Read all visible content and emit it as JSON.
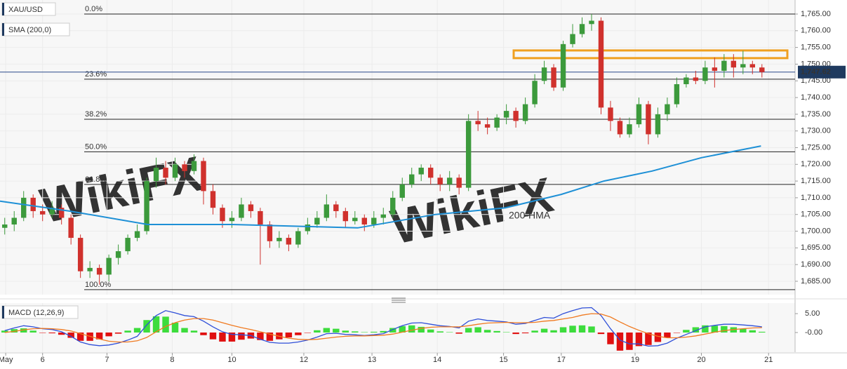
{
  "chart_data": [
    {
      "type": "candlestick",
      "title": "XAU/USD",
      "subtitle": "SMA (200,0)",
      "watermark": "WikiFX",
      "open": [
        1701,
        1702,
        1704,
        1710,
        1706,
        1705,
        1707,
        1704,
        1698,
        1688,
        1689,
        1687,
        1692,
        1694,
        1698,
        1700,
        1715,
        1719,
        1716,
        1720,
        1718,
        1721,
        1712,
        1707,
        1703,
        1704,
        1708,
        1706,
        1702,
        1697,
        1698,
        1696,
        1700,
        1702,
        1704,
        1708,
        1706,
        1703,
        1704,
        1702,
        1704,
        1705,
        1710,
        1714,
        1717,
        1719,
        1716,
        1714,
        1716,
        1713,
        1733,
        1732,
        1731,
        1734,
        1736,
        1733,
        1738,
        1745,
        1749,
        1743,
        1756,
        1759,
        1762,
        1763,
        1737,
        1733,
        1729,
        1732,
        1738,
        1729,
        1735,
        1738,
        1744,
        1746,
        1745,
        1749,
        1748,
        1751,
        1749,
        1750,
        1749
      ],
      "high": [
        1704,
        1706,
        1712,
        1711,
        1708,
        1709,
        1708,
        1705,
        1699,
        1691,
        1690,
        1693,
        1696,
        1699,
        1702,
        1716,
        1722,
        1721,
        1722,
        1721,
        1723,
        1722,
        1714,
        1708,
        1706,
        1710,
        1709,
        1707,
        1703,
        1700,
        1699,
        1701,
        1704,
        1706,
        1711,
        1709,
        1707,
        1706,
        1705,
        1706,
        1707,
        1712,
        1716,
        1719,
        1720,
        1720,
        1717,
        1718,
        1717,
        1735,
        1736,
        1734,
        1735,
        1738,
        1737,
        1740,
        1747,
        1751,
        1750,
        1757,
        1762,
        1764,
        1765,
        1764,
        1739,
        1734,
        1734,
        1740,
        1739,
        1737,
        1740,
        1746,
        1747,
        1748,
        1751,
        1752,
        1753,
        1753,
        1754,
        1751,
        1750
      ],
      "low": [
        1699,
        1700,
        1703,
        1704,
        1703,
        1704,
        1702,
        1696,
        1686,
        1686,
        1684,
        1685,
        1690,
        1693,
        1697,
        1699,
        1713,
        1714,
        1715,
        1716,
        1717,
        1708,
        1705,
        1701,
        1701,
        1703,
        1704,
        1690,
        1695,
        1695,
        1694,
        1695,
        1699,
        1701,
        1703,
        1704,
        1701,
        1702,
        1700,
        1701,
        1702,
        1704,
        1709,
        1713,
        1715,
        1714,
        1712,
        1712,
        1711,
        1712,
        1730,
        1729,
        1730,
        1732,
        1731,
        1732,
        1737,
        1744,
        1742,
        1742,
        1755,
        1758,
        1760,
        1735,
        1730,
        1728,
        1728,
        1731,
        1726,
        1728,
        1733,
        1737,
        1743,
        1744,
        1744,
        1743,
        1746,
        1746,
        1747,
        1747,
        1746
      ],
      "close": [
        1702,
        1704,
        1710,
        1706,
        1705,
        1707,
        1704,
        1698,
        1688,
        1689,
        1687,
        1692,
        1694,
        1698,
        1700,
        1715,
        1719,
        1716,
        1720,
        1718,
        1721,
        1712,
        1707,
        1703,
        1704,
        1708,
        1706,
        1702,
        1697,
        1698,
        1696,
        1700,
        1702,
        1704,
        1708,
        1706,
        1703,
        1704,
        1702,
        1704,
        1705,
        1710,
        1714,
        1717,
        1719,
        1716,
        1714,
        1716,
        1713,
        1733,
        1732,
        1731,
        1734,
        1736,
        1733,
        1738,
        1745,
        1749,
        1743,
        1756,
        1759,
        1762,
        1763,
        1737,
        1733,
        1729,
        1732,
        1738,
        1729,
        1735,
        1738,
        1744,
        1746,
        1745,
        1749,
        1748,
        1751,
        1749,
        1750,
        1749,
        1747.62
      ],
      "up_color": "#3c9a3c",
      "down_color": "#d0312d",
      "series": [
        {
          "name": "200-HMA",
          "color": "#1e90d6",
          "x": [
            -0.5,
            6.9,
            15.1,
            24,
            37.3,
            45.5,
            52.9,
            58.8,
            63.3,
            68.4,
            73.6,
            79.9
          ],
          "values": [
            1709,
            1706,
            1702,
            1702,
            1701,
            1705,
            1707,
            1711,
            1715,
            1718,
            1722,
            1725.5
          ]
        }
      ],
      "fib_levels": [
        {
          "value": 1765,
          "label": "0.0%"
        },
        {
          "value": 1745.5,
          "label": "23.6%"
        },
        {
          "value": 1733.5,
          "label": "38.2%"
        },
        {
          "value": 1723.75,
          "label": "50.0%"
        },
        {
          "value": 1714,
          "label": "61.8%"
        },
        {
          "value": 1682.5,
          "label": "100.0%"
        }
      ],
      "resistance_zone": [
        1751.8,
        1754.1
      ],
      "zone_color": "#f0a020",
      "last_price": {
        "value": 1747.62,
        "label": "1,747.62"
      },
      "xlim": [
        -0.5,
        83.5
      ],
      "xticks": [
        {
          "value": 0.1,
          "label": "May"
        },
        {
          "value": 4,
          "label": "6"
        },
        {
          "value": 10.8,
          "label": "7"
        },
        {
          "value": 17.7,
          "label": "8"
        },
        {
          "value": 24,
          "label": "10"
        },
        {
          "value": 31.6,
          "label": "12"
        },
        {
          "value": 38.8,
          "label": "13"
        },
        {
          "value": 45.7,
          "label": "14"
        },
        {
          "value": 52.7,
          "label": "15"
        },
        {
          "value": 58.8,
          "label": "17"
        },
        {
          "value": 66.6,
          "label": "19"
        },
        {
          "value": 73.6,
          "label": "20"
        },
        {
          "value": 80.7,
          "label": "21"
        }
      ],
      "ylim": [
        1681,
        1769.2
      ],
      "yticks": [
        {
          "value": 1685,
          "label": "1,685.00"
        },
        {
          "value": 1690,
          "label": "1,690.00"
        },
        {
          "value": 1695,
          "label": "1,695.00"
        },
        {
          "value": 1700,
          "label": "1,700.00"
        },
        {
          "value": 1705,
          "label": "1,705.00"
        },
        {
          "value": 1710,
          "label": "1,710.00"
        },
        {
          "value": 1715,
          "label": "1,715.00"
        },
        {
          "value": 1720,
          "label": "1,720.00"
        },
        {
          "value": 1725,
          "label": "1,725.00"
        },
        {
          "value": 1730,
          "label": "1,730.00"
        },
        {
          "value": 1735,
          "label": "1,735.00"
        },
        {
          "value": 1740,
          "label": "1,740.00"
        },
        {
          "value": 1745,
          "label": "1,745.00"
        },
        {
          "value": 1750,
          "label": "1,750.00"
        },
        {
          "value": 1755,
          "label": "1,755.00"
        },
        {
          "value": 1760,
          "label": "1,760.00"
        },
        {
          "value": 1765,
          "label": "1,765.00"
        }
      ],
      "grid": true
    },
    {
      "type": "macd",
      "title": "MACD (12,26,9)",
      "histogram": [
        0.5,
        0.9,
        1.1,
        0.5,
        -0.1,
        -0.2,
        -0.6,
        -1.4,
        -2.2,
        -2.2,
        -1.8,
        -1.0,
        -0.3,
        0.5,
        1.2,
        3.3,
        4.3,
        4.2,
        2.6,
        1.2,
        0.5,
        -0.7,
        -1.8,
        -2.4,
        -2.4,
        -1.9,
        -1.6,
        -2.0,
        -2.2,
        -1.8,
        -1.3,
        -0.7,
        -0.1,
        0.6,
        1.2,
        1.0,
        0.5,
        0.3,
        0.1,
        0.2,
        0.4,
        1.2,
        1.7,
        1.9,
        1.5,
        0.8,
        0.3,
        0.1,
        -0.3,
        1.2,
        1.4,
        0.7,
        0.4,
        0.1,
        -0.4,
        -0.2,
        0.5,
        1.0,
        0.6,
        1.4,
        1.8,
        1.9,
        1.6,
        -0.4,
        -3.1,
        -4.8,
        -4.6,
        -3.6,
        -3.3,
        -2.5,
        -1.4,
        -0.1,
        0.7,
        1.4,
        1.9,
        1.8,
        1.7,
        1.4,
        1.0,
        0.6,
        0.2
      ],
      "pos_color": "#3ddc3d",
      "neg_color": "#e01010",
      "series": [
        {
          "color": "#2f4fd8",
          "values": [
            0.5,
            1.2,
            1.8,
            1.5,
            1.0,
            0.8,
            0.2,
            -1.0,
            -2.5,
            -3.2,
            -3.5,
            -3.3,
            -2.8,
            -2.0,
            -1.0,
            2.0,
            4.5,
            5.8,
            5.2,
            4.5,
            4.2,
            3.0,
            1.5,
            0.2,
            -0.5,
            -0.6,
            -0.8,
            -1.8,
            -2.6,
            -2.8,
            -2.8,
            -2.5,
            -2.0,
            -1.2,
            -0.3,
            -0.2,
            -0.5,
            -0.6,
            -0.8,
            -0.6,
            -0.3,
            0.8,
            1.8,
            2.5,
            2.6,
            2.2,
            1.8,
            1.6,
            1.2,
            3.0,
            3.6,
            3.2,
            3.0,
            2.8,
            2.2,
            2.4,
            3.2,
            4.0,
            3.8,
            5.0,
            5.8,
            6.5,
            6.6,
            4.5,
            1.0,
            -2.0,
            -3.0,
            -3.0,
            -3.6,
            -3.5,
            -2.8,
            -1.5,
            -0.5,
            0.5,
            1.5,
            1.9,
            2.2,
            2.2,
            2.0,
            1.8,
            1.5
          ]
        },
        {
          "color": "#f07a20",
          "values": [
            0.0,
            0.3,
            0.7,
            1.0,
            1.1,
            1.0,
            0.8,
            0.4,
            -0.3,
            -1.0,
            -1.7,
            -2.3,
            -2.5,
            -2.5,
            -2.2,
            -1.3,
            0.2,
            1.6,
            2.6,
            3.3,
            3.7,
            3.7,
            3.3,
            2.6,
            1.9,
            1.3,
            0.8,
            0.2,
            -0.4,
            -1.0,
            -1.5,
            -1.8,
            -1.9,
            -1.8,
            -1.5,
            -1.2,
            -1.0,
            -0.9,
            -0.9,
            -0.8,
            -0.7,
            -0.4,
            0.1,
            0.6,
            1.1,
            1.4,
            1.5,
            1.5,
            1.5,
            1.8,
            2.2,
            2.5,
            2.6,
            2.7,
            2.6,
            2.6,
            2.7,
            3.0,
            3.2,
            3.6,
            4.0,
            4.6,
            5.0,
            4.9,
            4.1,
            2.8,
            1.6,
            0.6,
            -0.3,
            -1.0,
            -1.4,
            -1.4,
            -1.2,
            -0.9,
            -0.4,
            0.1,
            0.5,
            0.8,
            1.0,
            1.2,
            1.3
          ]
        }
      ],
      "xlim": [
        -0.5,
        83.5
      ],
      "ylim": [
        -5.2,
        7.8
      ],
      "yticks": [
        {
          "value": 5,
          "label": "5.00"
        },
        {
          "value": 0,
          "label": "-0.00"
        }
      ]
    }
  ]
}
